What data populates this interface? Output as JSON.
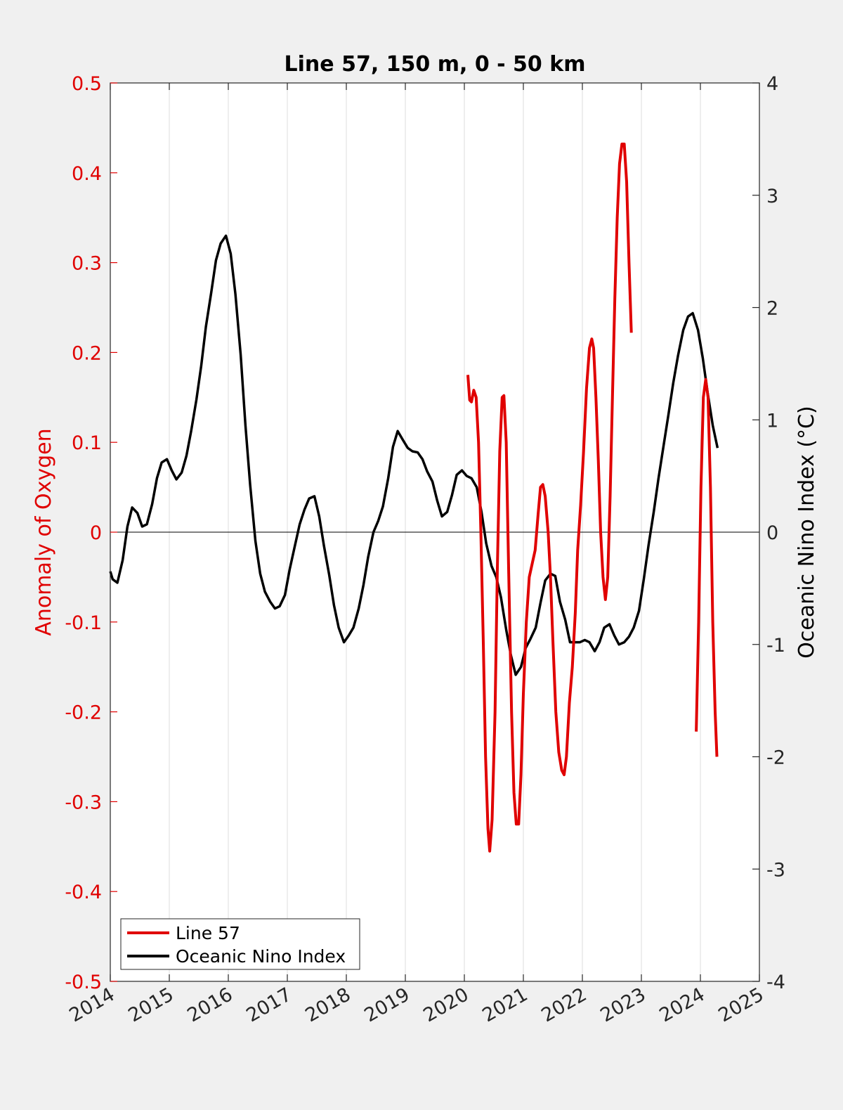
{
  "chart_data": {
    "type": "line",
    "title": "Line 57, 150 m, 0 - 50 km",
    "xlabel": "",
    "ylabel": "Anomaly of Oxygen",
    "ylabel_right": "Oceanic Nino Index (°C)",
    "xlim": [
      2014,
      2025
    ],
    "ylim": [
      -0.5,
      0.5
    ],
    "ylim_right": [
      -4,
      4
    ],
    "x_ticks": [
      "2014",
      "2015",
      "2016",
      "2017",
      "2018",
      "2019",
      "2020",
      "2021",
      "2022",
      "2023",
      "2024",
      "2025"
    ],
    "y_ticks": [
      "-0.5",
      "-0.4",
      "-0.3",
      "-0.2",
      "-0.1",
      "0",
      "0.1",
      "0.2",
      "0.3",
      "0.4",
      "0.5"
    ],
    "y_ticks_right": [
      "-4",
      "-3",
      "-2",
      "-1",
      "0",
      "1",
      "2",
      "3",
      "4"
    ],
    "grid": "vertical",
    "legend_position": "bottom-left",
    "colors": {
      "line57": "#e00000",
      "oni": "#000000",
      "left_axis": "#e00000",
      "right_axis": "#000000"
    },
    "series": [
      {
        "name": "Line 57",
        "axis": "left",
        "segments": [
          [
            [
              2020.06,
              0.175
            ],
            [
              2020.09,
              0.147
            ],
            [
              2020.12,
              0.145
            ],
            [
              2020.16,
              0.158
            ],
            [
              2020.2,
              0.15
            ],
            [
              2020.24,
              0.1
            ],
            [
              2020.28,
              0.0
            ],
            [
              2020.32,
              -0.12
            ],
            [
              2020.36,
              -0.25
            ],
            [
              2020.4,
              -0.33
            ],
            [
              2020.43,
              -0.355
            ],
            [
              2020.47,
              -0.32
            ],
            [
              2020.52,
              -0.2
            ],
            [
              2020.56,
              -0.04
            ],
            [
              2020.6,
              0.09
            ],
            [
              2020.64,
              0.15
            ],
            [
              2020.67,
              0.152
            ],
            [
              2020.71,
              0.1
            ],
            [
              2020.75,
              -0.04
            ],
            [
              2020.8,
              -0.2
            ],
            [
              2020.84,
              -0.29
            ],
            [
              2020.88,
              -0.325
            ],
            [
              2020.92,
              -0.325
            ],
            [
              2020.96,
              -0.27
            ],
            [
              2021.0,
              -0.18
            ],
            [
              2021.05,
              -0.1
            ],
            [
              2021.1,
              -0.05
            ],
            [
              2021.15,
              -0.035
            ],
            [
              2021.2,
              -0.02
            ],
            [
              2021.25,
              0.02
            ],
            [
              2021.29,
              0.05
            ],
            [
              2021.33,
              0.053
            ],
            [
              2021.37,
              0.04
            ],
            [
              2021.42,
              0.0
            ],
            [
              2021.46,
              -0.05
            ],
            [
              2021.5,
              -0.12
            ],
            [
              2021.55,
              -0.2
            ],
            [
              2021.6,
              -0.245
            ],
            [
              2021.65,
              -0.265
            ],
            [
              2021.69,
              -0.27
            ],
            [
              2021.73,
              -0.25
            ],
            [
              2021.78,
              -0.19
            ],
            [
              2021.83,
              -0.15
            ],
            [
              2021.88,
              -0.09
            ],
            [
              2021.92,
              -0.02
            ],
            [
              2021.97,
              0.03
            ],
            [
              2022.02,
              0.09
            ],
            [
              2022.07,
              0.16
            ],
            [
              2022.12,
              0.205
            ],
            [
              2022.16,
              0.215
            ],
            [
              2022.19,
              0.205
            ],
            [
              2022.23,
              0.15
            ],
            [
              2022.27,
              0.08
            ],
            [
              2022.31,
              0.0
            ],
            [
              2022.35,
              -0.05
            ],
            [
              2022.39,
              -0.075
            ],
            [
              2022.43,
              -0.05
            ],
            [
              2022.47,
              0.04
            ],
            [
              2022.51,
              0.15
            ],
            [
              2022.55,
              0.26
            ],
            [
              2022.59,
              0.35
            ],
            [
              2022.63,
              0.41
            ],
            [
              2022.67,
              0.432
            ],
            [
              2022.71,
              0.432
            ],
            [
              2022.75,
              0.39
            ],
            [
              2022.79,
              0.3
            ],
            [
              2022.83,
              0.222
            ]
          ],
          [
            [
              2023.93,
              -0.222
            ],
            [
              2023.97,
              -0.1
            ],
            [
              2024.01,
              0.05
            ],
            [
              2024.05,
              0.15
            ],
            [
              2024.09,
              0.17
            ],
            [
              2024.13,
              0.15
            ],
            [
              2024.17,
              0.05
            ],
            [
              2024.21,
              -0.1
            ],
            [
              2024.25,
              -0.2
            ],
            [
              2024.28,
              -0.25
            ]
          ]
        ]
      },
      {
        "name": "Oceanic Nino Index",
        "axis": "right",
        "points": [
          [
            2014.0,
            -0.35
          ],
          [
            2014.04,
            -0.42
          ],
          [
            2014.12,
            -0.45
          ],
          [
            2014.21,
            -0.25
          ],
          [
            2014.29,
            0.05
          ],
          [
            2014.37,
            0.22
          ],
          [
            2014.46,
            0.17
          ],
          [
            2014.54,
            0.05
          ],
          [
            2014.62,
            0.07
          ],
          [
            2014.71,
            0.25
          ],
          [
            2014.79,
            0.48
          ],
          [
            2014.87,
            0.62
          ],
          [
            2014.96,
            0.65
          ],
          [
            2015.04,
            0.55
          ],
          [
            2015.12,
            0.47
          ],
          [
            2015.21,
            0.53
          ],
          [
            2015.29,
            0.68
          ],
          [
            2015.37,
            0.9
          ],
          [
            2015.46,
            1.18
          ],
          [
            2015.54,
            1.48
          ],
          [
            2015.62,
            1.83
          ],
          [
            2015.71,
            2.13
          ],
          [
            2015.79,
            2.42
          ],
          [
            2015.87,
            2.57
          ],
          [
            2015.96,
            2.64
          ],
          [
            2016.04,
            2.48
          ],
          [
            2016.12,
            2.12
          ],
          [
            2016.21,
            1.58
          ],
          [
            2016.29,
            0.95
          ],
          [
            2016.37,
            0.42
          ],
          [
            2016.46,
            -0.08
          ],
          [
            2016.54,
            -0.37
          ],
          [
            2016.62,
            -0.53
          ],
          [
            2016.71,
            -0.62
          ],
          [
            2016.79,
            -0.68
          ],
          [
            2016.87,
            -0.66
          ],
          [
            2016.96,
            -0.56
          ],
          [
            2017.04,
            -0.33
          ],
          [
            2017.12,
            -0.14
          ],
          [
            2017.21,
            0.07
          ],
          [
            2017.29,
            0.2
          ],
          [
            2017.37,
            0.3
          ],
          [
            2017.46,
            0.32
          ],
          [
            2017.54,
            0.14
          ],
          [
            2017.62,
            -0.12
          ],
          [
            2017.71,
            -0.38
          ],
          [
            2017.79,
            -0.65
          ],
          [
            2017.87,
            -0.85
          ],
          [
            2017.96,
            -0.98
          ],
          [
            2018.04,
            -0.92
          ],
          [
            2018.12,
            -0.85
          ],
          [
            2018.21,
            -0.68
          ],
          [
            2018.29,
            -0.47
          ],
          [
            2018.37,
            -0.22
          ],
          [
            2018.46,
            0.0
          ],
          [
            2018.54,
            0.1
          ],
          [
            2018.62,
            0.23
          ],
          [
            2018.71,
            0.48
          ],
          [
            2018.79,
            0.76
          ],
          [
            2018.87,
            0.9
          ],
          [
            2018.96,
            0.82
          ],
          [
            2019.04,
            0.75
          ],
          [
            2019.12,
            0.72
          ],
          [
            2019.21,
            0.71
          ],
          [
            2019.29,
            0.65
          ],
          [
            2019.37,
            0.54
          ],
          [
            2019.46,
            0.45
          ],
          [
            2019.54,
            0.28
          ],
          [
            2019.62,
            0.14
          ],
          [
            2019.71,
            0.18
          ],
          [
            2019.79,
            0.33
          ],
          [
            2019.87,
            0.51
          ],
          [
            2019.96,
            0.55
          ],
          [
            2020.04,
            0.5
          ],
          [
            2020.12,
            0.48
          ],
          [
            2020.21,
            0.4
          ],
          [
            2020.29,
            0.18
          ],
          [
            2020.37,
            -0.1
          ],
          [
            2020.46,
            -0.3
          ],
          [
            2020.54,
            -0.4
          ],
          [
            2020.62,
            -0.58
          ],
          [
            2020.71,
            -0.87
          ],
          [
            2020.79,
            -1.1
          ],
          [
            2020.87,
            -1.27
          ],
          [
            2020.96,
            -1.2
          ],
          [
            2021.04,
            -1.03
          ],
          [
            2021.12,
            -0.95
          ],
          [
            2021.21,
            -0.85
          ],
          [
            2021.29,
            -0.63
          ],
          [
            2021.37,
            -0.43
          ],
          [
            2021.46,
            -0.37
          ],
          [
            2021.54,
            -0.39
          ],
          [
            2021.62,
            -0.62
          ],
          [
            2021.71,
            -0.78
          ],
          [
            2021.79,
            -0.98
          ],
          [
            2021.87,
            -0.98
          ],
          [
            2021.96,
            -0.98
          ],
          [
            2022.04,
            -0.96
          ],
          [
            2022.12,
            -0.98
          ],
          [
            2022.21,
            -1.06
          ],
          [
            2022.29,
            -0.98
          ],
          [
            2022.37,
            -0.85
          ],
          [
            2022.46,
            -0.82
          ],
          [
            2022.54,
            -0.92
          ],
          [
            2022.62,
            -1.0
          ],
          [
            2022.71,
            -0.98
          ],
          [
            2022.79,
            -0.93
          ],
          [
            2022.87,
            -0.85
          ],
          [
            2022.96,
            -0.7
          ],
          [
            2023.04,
            -0.42
          ],
          [
            2023.12,
            -0.12
          ],
          [
            2023.21,
            0.18
          ],
          [
            2023.29,
            0.48
          ],
          [
            2023.37,
            0.75
          ],
          [
            2023.46,
            1.05
          ],
          [
            2023.54,
            1.33
          ],
          [
            2023.62,
            1.57
          ],
          [
            2023.71,
            1.8
          ],
          [
            2023.79,
            1.92
          ],
          [
            2023.87,
            1.95
          ],
          [
            2023.96,
            1.8
          ],
          [
            2024.04,
            1.55
          ],
          [
            2024.12,
            1.25
          ],
          [
            2024.21,
            0.95
          ],
          [
            2024.29,
            0.75
          ]
        ]
      }
    ]
  }
}
